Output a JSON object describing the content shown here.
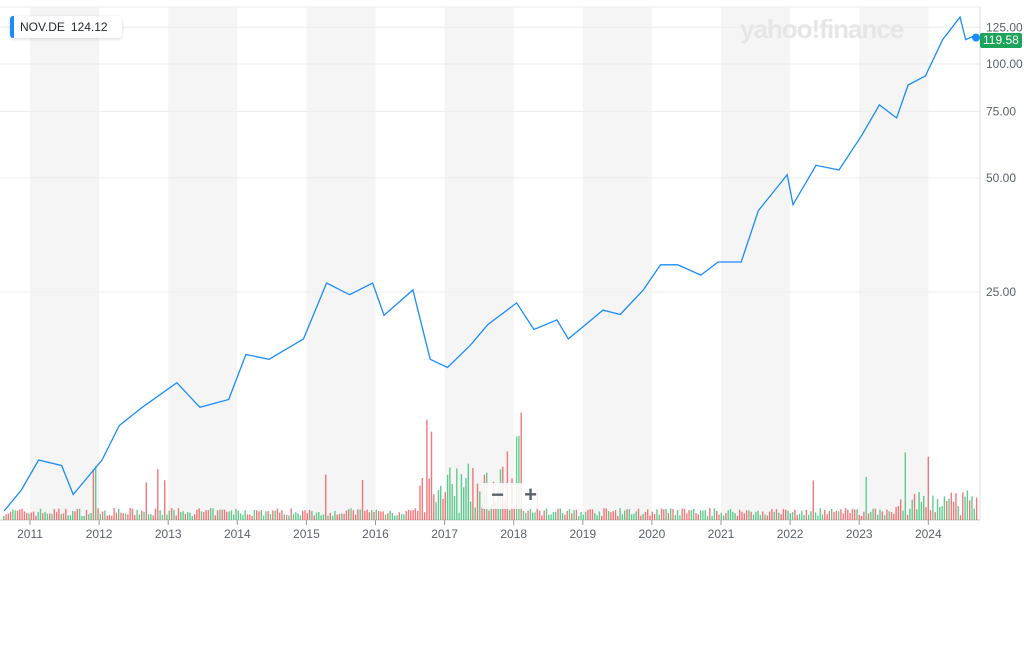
{
  "ticker": {
    "symbol": "NOV.DE",
    "value": "124.12",
    "accent": "#1a8cff"
  },
  "logo": "yahoo!finance",
  "current_price": "119.58",
  "zoom": {
    "minus": "−",
    "plus": "+"
  },
  "colors": {
    "line": "#1a8cff",
    "up": "#2cbb6a",
    "down": "#f0494f",
    "band": "#f5f5f5",
    "price_tag": "#1aa55a"
  },
  "chart_data": {
    "type": "line",
    "title": "",
    "xlabel": "",
    "ylabel": "",
    "y_scale": "log",
    "ylim": [
      6.3,
      150
    ],
    "y_ticks": [
      25,
      50,
      75,
      100,
      125
    ],
    "y_tick_labels": [
      "25.00",
      "50.00",
      "75.00",
      "100.00",
      "125.00"
    ],
    "x_tick_labels": [
      "2011",
      "2012",
      "2013",
      "2014",
      "2015",
      "2016",
      "2017",
      "2018",
      "2019",
      "2020",
      "2021",
      "2022",
      "2023",
      "2024"
    ],
    "grid": true,
    "series": [
      {
        "x": [
          "2010-08",
          "2010-11",
          "2011-02",
          "2011-06",
          "2011-08",
          "2012-01",
          "2012-04",
          "2012-08",
          "2013-02",
          "2013-06",
          "2013-11",
          "2014-02",
          "2014-06",
          "2014-12",
          "2015-04",
          "2015-08",
          "2015-12",
          "2016-02",
          "2016-07",
          "2016-10",
          "2017-01",
          "2017-05",
          "2017-08",
          "2018-01",
          "2018-04",
          "2018-08",
          "2018-10",
          "2019-04",
          "2019-07",
          "2019-11",
          "2020-02",
          "2020-05",
          "2020-09",
          "2020-12",
          "2021-04",
          "2021-07",
          "2021-12",
          "2022-01",
          "2022-05",
          "2022-09",
          "2023-01",
          "2023-04",
          "2023-07",
          "2023-09",
          "2023-12",
          "2024-03",
          "2024-06",
          "2024-07",
          "2024-09"
        ],
        "y": [
          6.6,
          7.5,
          9.0,
          8.7,
          7.3,
          9.0,
          11.1,
          12.4,
          14.4,
          12.4,
          13.0,
          17.1,
          16.6,
          18.8,
          26.4,
          24.6,
          26.4,
          21.7,
          25.3,
          16.6,
          15.8,
          18.1,
          20.5,
          23.4,
          19.9,
          21.1,
          18.8,
          22.4,
          21.8,
          25.3,
          29.5,
          29.5,
          27.7,
          30.0,
          30.0,
          41,
          51,
          42.5,
          54,
          52.5,
          65,
          78,
          72,
          88,
          93,
          116,
          133,
          116,
          119.58
        ]
      }
    ],
    "volume": "bars below price (unlabeled)"
  }
}
